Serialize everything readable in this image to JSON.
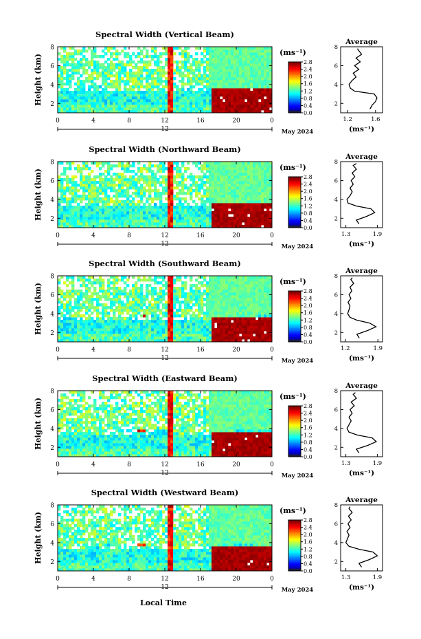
{
  "figure": {
    "x_label": "Local Time",
    "y_label": "Height (km)",
    "unit_label": "(ms⁻¹)",
    "date_label": "May 2024",
    "day_label": "12",
    "average_title": "Average",
    "average_unit": "(ms⁻¹)"
  },
  "chart_data": [
    {
      "type": "heatmap",
      "title": "Spectral Width (Vertical Beam)",
      "xlim": [
        0,
        24
      ],
      "ylim": [
        1,
        8
      ],
      "x_ticks": [
        "0",
        "4",
        "8",
        "12",
        "16",
        "20",
        "0"
      ],
      "y_ticks": [
        "2",
        "4",
        "6",
        "8"
      ],
      "colorbar": {
        "range": [
          0,
          2.8
        ],
        "ticks": [
          "0.0",
          "0.4",
          "0.8",
          "1.2",
          "1.6",
          "2.0",
          "2.4",
          "2.8"
        ]
      },
      "average_profile": {
        "x_ticks": [
          "1.2",
          "1.6"
        ],
        "xlim": [
          1.1,
          1.7
        ],
        "y_ticks": [
          "2",
          "4",
          "6",
          "8"
        ],
        "points": [
          [
            1.52,
            1.4
          ],
          [
            1.55,
            1.8
          ],
          [
            1.6,
            2.2
          ],
          [
            1.62,
            2.6
          ],
          [
            1.58,
            3.0
          ],
          [
            1.3,
            3.3
          ],
          [
            1.24,
            3.6
          ],
          [
            1.22,
            4.0
          ],
          [
            1.26,
            4.4
          ],
          [
            1.32,
            4.8
          ],
          [
            1.28,
            5.2
          ],
          [
            1.36,
            5.6
          ],
          [
            1.3,
            6.0
          ],
          [
            1.38,
            6.4
          ],
          [
            1.32,
            6.8
          ],
          [
            1.4,
            7.2
          ],
          [
            1.36,
            7.6
          ],
          [
            1.34,
            7.8
          ]
        ]
      }
    },
    {
      "type": "heatmap",
      "title": "Spectral Width (Northward Beam)",
      "xlim": [
        0,
        24
      ],
      "ylim": [
        1,
        8
      ],
      "x_ticks": [
        "0",
        "4",
        "8",
        "12",
        "16",
        "20",
        "0"
      ],
      "y_ticks": [
        "2",
        "4",
        "6",
        "8"
      ],
      "colorbar": {
        "range": [
          0,
          2.8
        ],
        "ticks": [
          "0.0",
          "0.4",
          "0.8",
          "1.2",
          "1.6",
          "2.0",
          "2.4",
          "2.8"
        ]
      },
      "average_profile": {
        "x_ticks": [
          "1.3",
          "1.9"
        ],
        "xlim": [
          1.2,
          2.0
        ],
        "y_ticks": [
          "2",
          "4",
          "6",
          "8"
        ],
        "points": [
          [
            1.55,
            1.4
          ],
          [
            1.5,
            1.8
          ],
          [
            1.7,
            2.2
          ],
          [
            1.85,
            2.6
          ],
          [
            1.78,
            3.0
          ],
          [
            1.5,
            3.3
          ],
          [
            1.34,
            3.6
          ],
          [
            1.32,
            4.0
          ],
          [
            1.38,
            4.4
          ],
          [
            1.42,
            4.8
          ],
          [
            1.38,
            5.2
          ],
          [
            1.44,
            5.6
          ],
          [
            1.4,
            6.0
          ],
          [
            1.47,
            6.4
          ],
          [
            1.42,
            6.8
          ],
          [
            1.5,
            7.2
          ],
          [
            1.44,
            7.6
          ],
          [
            1.5,
            7.8
          ]
        ]
      }
    },
    {
      "type": "heatmap",
      "title": "Spectral Width (Southward Beam)",
      "xlim": [
        0,
        24
      ],
      "ylim": [
        1,
        8
      ],
      "x_ticks": [
        "0",
        "4",
        "8",
        "12",
        "16",
        "20",
        "0"
      ],
      "y_ticks": [
        "2",
        "4",
        "6",
        "8"
      ],
      "colorbar": {
        "range": [
          0,
          2.8
        ],
        "ticks": [
          "0.0",
          "0.4",
          "0.8",
          "1.2",
          "1.6",
          "2.0",
          "2.4",
          "2.8"
        ]
      },
      "average_profile": {
        "x_ticks": [
          "1.2",
          "1.9"
        ],
        "xlim": [
          1.1,
          2.0
        ],
        "y_ticks": [
          "2",
          "4",
          "6",
          "8"
        ],
        "points": [
          [
            1.5,
            1.4
          ],
          [
            1.45,
            1.8
          ],
          [
            1.68,
            2.2
          ],
          [
            1.86,
            2.6
          ],
          [
            1.72,
            3.0
          ],
          [
            1.45,
            3.3
          ],
          [
            1.3,
            3.6
          ],
          [
            1.25,
            4.0
          ],
          [
            1.28,
            4.4
          ],
          [
            1.3,
            4.8
          ],
          [
            1.26,
            5.2
          ],
          [
            1.32,
            5.6
          ],
          [
            1.28,
            6.0
          ],
          [
            1.34,
            6.4
          ],
          [
            1.3,
            6.8
          ],
          [
            1.38,
            7.2
          ],
          [
            1.32,
            7.6
          ],
          [
            1.35,
            7.8
          ]
        ]
      }
    },
    {
      "type": "heatmap",
      "title": "Spectral Width (Eastward Beam)",
      "xlim": [
        0,
        24
      ],
      "ylim": [
        1,
        8
      ],
      "x_ticks": [
        "0",
        "4",
        "8",
        "12",
        "16",
        "20",
        "0"
      ],
      "y_ticks": [
        "2",
        "4",
        "6",
        "8"
      ],
      "colorbar": {
        "range": [
          0,
          2.8
        ],
        "ticks": [
          "0.0",
          "0.4",
          "0.8",
          "1.2",
          "1.6",
          "2.0",
          "2.4",
          "2.8"
        ]
      },
      "average_profile": {
        "x_ticks": [
          "1.3",
          "1.9"
        ],
        "xlim": [
          1.2,
          2.0
        ],
        "y_ticks": [
          "2",
          "4",
          "6",
          "8"
        ],
        "points": [
          [
            1.55,
            1.4
          ],
          [
            1.5,
            1.8
          ],
          [
            1.72,
            2.2
          ],
          [
            1.88,
            2.6
          ],
          [
            1.8,
            3.0
          ],
          [
            1.52,
            3.3
          ],
          [
            1.36,
            3.6
          ],
          [
            1.32,
            4.0
          ],
          [
            1.36,
            4.4
          ],
          [
            1.4,
            4.8
          ],
          [
            1.36,
            5.2
          ],
          [
            1.42,
            5.6
          ],
          [
            1.38,
            6.0
          ],
          [
            1.46,
            6.4
          ],
          [
            1.4,
            6.8
          ],
          [
            1.5,
            7.2
          ],
          [
            1.44,
            7.6
          ],
          [
            1.48,
            7.8
          ]
        ]
      }
    },
    {
      "type": "heatmap",
      "title": "Spectral Width (Westward Beam)",
      "xlim": [
        0,
        24
      ],
      "ylim": [
        1,
        8
      ],
      "x_ticks": [
        "0",
        "4",
        "8",
        "12",
        "16",
        "20",
        "0"
      ],
      "y_ticks": [
        "2",
        "4",
        "6",
        "8"
      ],
      "colorbar": {
        "range": [
          0,
          2.8
        ],
        "ticks": [
          "0.0",
          "0.4",
          "0.8",
          "1.2",
          "1.6",
          "2.0",
          "2.4",
          "2.8"
        ]
      },
      "average_profile": {
        "x_ticks": [
          "1.3",
          "1.9"
        ],
        "xlim": [
          1.2,
          2.0
        ],
        "y_ticks": [
          "2",
          "4",
          "6",
          "8"
        ],
        "points": [
          [
            1.6,
            1.4
          ],
          [
            1.55,
            1.8
          ],
          [
            1.75,
            2.2
          ],
          [
            1.9,
            2.6
          ],
          [
            1.82,
            3.0
          ],
          [
            1.55,
            3.3
          ],
          [
            1.36,
            3.6
          ],
          [
            1.3,
            4.0
          ],
          [
            1.33,
            4.4
          ],
          [
            1.36,
            4.8
          ],
          [
            1.32,
            5.2
          ],
          [
            1.38,
            5.6
          ],
          [
            1.34,
            6.0
          ],
          [
            1.4,
            6.4
          ],
          [
            1.35,
            6.8
          ],
          [
            1.42,
            7.2
          ],
          [
            1.36,
            7.6
          ],
          [
            1.38,
            7.8
          ]
        ]
      }
    }
  ]
}
